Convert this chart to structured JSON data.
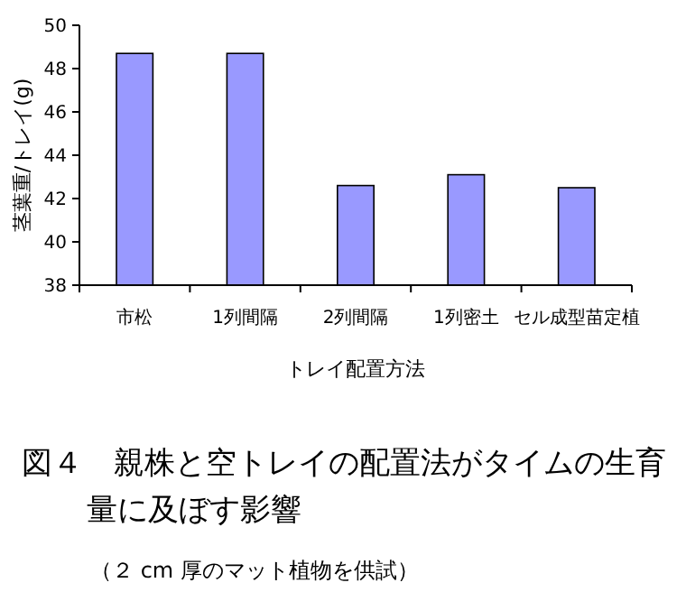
{
  "chart_data": {
    "type": "bar",
    "title": "図４　親株と空トレイの配置法がタイムの生育量に及ぼす影響",
    "subtitle": "（２ cm 厚のマット植物を供試）",
    "xlabel": "トレイ配置方法",
    "ylabel": "茎葉重/トレイ(g)",
    "categories": [
      "市松",
      "1列間隔",
      "2列間隔",
      "1列密土",
      "セル成型苗定植"
    ],
    "values": [
      48.7,
      48.7,
      42.6,
      43.1,
      42.5
    ],
    "color": "#9999ff",
    "ylim": [
      38,
      50
    ],
    "yticks": [
      38,
      40,
      42,
      44,
      46,
      48,
      50
    ],
    "grid": false
  }
}
